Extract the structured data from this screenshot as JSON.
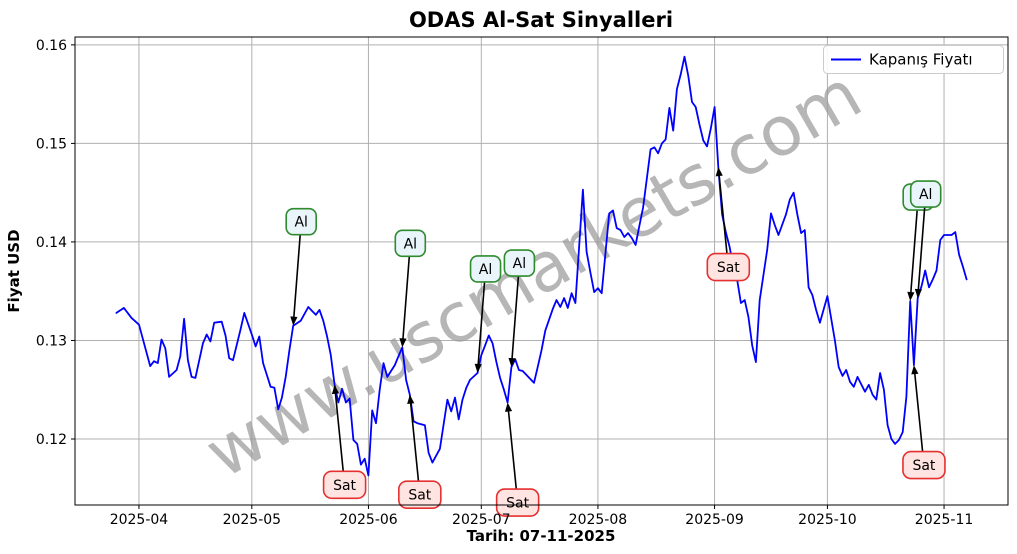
{
  "title": "ODAS Al-Sat Sinyalleri",
  "watermark": "www.uscmarkets.com",
  "axes": {
    "x_label": "Tarih: 07-11-2025",
    "y_label": "Fiyat USD"
  },
  "legend": {
    "label": "Kapanış Fiyatı"
  },
  "colors": {
    "line": "#0000ff",
    "grid": "#b0b0b0",
    "spine": "#000000",
    "buy_box_fill": "#eaf4fb",
    "buy_box_border": "#2e8b2e",
    "sell_box_fill": "#ffe4e1",
    "sell_box_border": "#e53030",
    "arrow": "#000000",
    "watermark": "#9b9b9b"
  },
  "chart_data": {
    "type": "line",
    "title": "ODAS Al-Sat Sinyalleri",
    "xlabel": "Tarih: 07-11-2025",
    "ylabel": "Fiyat USD",
    "grid": true,
    "legend_position": "upper right",
    "xlim": [
      "2025-03-15",
      "2025-11-18"
    ],
    "ylim": [
      0.1133,
      0.1608
    ],
    "x_ticks": [
      {
        "date": "2025-04-01",
        "label": "2025-04"
      },
      {
        "date": "2025-05-01",
        "label": "2025-05"
      },
      {
        "date": "2025-06-01",
        "label": "2025-06"
      },
      {
        "date": "2025-07-01",
        "label": "2025-07"
      },
      {
        "date": "2025-08-01",
        "label": "2025-08"
      },
      {
        "date": "2025-09-01",
        "label": "2025-09"
      },
      {
        "date": "2025-10-01",
        "label": "2025-10"
      },
      {
        "date": "2025-11-01",
        "label": "2025-11"
      }
    ],
    "y_ticks": [
      0.12,
      0.13,
      0.14,
      0.15,
      0.16
    ],
    "series": [
      {
        "name": "Kapanış Fiyatı",
        "color": "#0000ff",
        "points": [
          [
            "2025-03-26",
            0.1328
          ],
          [
            "2025-03-28",
            0.1333
          ],
          [
            "2025-03-30",
            0.1323
          ],
          [
            "2025-04-01",
            0.1316
          ],
          [
            "2025-04-04",
            0.1274
          ],
          [
            "2025-04-05",
            0.1279
          ],
          [
            "2025-04-06",
            0.1277
          ],
          [
            "2025-04-07",
            0.1301
          ],
          [
            "2025-04-08",
            0.1292
          ],
          [
            "2025-04-09",
            0.1263
          ],
          [
            "2025-04-11",
            0.127
          ],
          [
            "2025-04-12",
            0.1284
          ],
          [
            "2025-04-13",
            0.1322
          ],
          [
            "2025-04-14",
            0.128
          ],
          [
            "2025-04-15",
            0.1263
          ],
          [
            "2025-04-16",
            0.1262
          ],
          [
            "2025-04-18",
            0.1297
          ],
          [
            "2025-04-19",
            0.1306
          ],
          [
            "2025-04-20",
            0.1299
          ],
          [
            "2025-04-21",
            0.1318
          ],
          [
            "2025-04-23",
            0.1319
          ],
          [
            "2025-04-24",
            0.1305
          ],
          [
            "2025-04-25",
            0.1282
          ],
          [
            "2025-04-26",
            0.128
          ],
          [
            "2025-04-28",
            0.1311
          ],
          [
            "2025-04-29",
            0.1328
          ],
          [
            "2025-05-01",
            0.1306
          ],
          [
            "2025-05-02",
            0.1294
          ],
          [
            "2025-05-03",
            0.1304
          ],
          [
            "2025-05-04",
            0.1277
          ],
          [
            "2025-05-06",
            0.1253
          ],
          [
            "2025-05-07",
            0.1252
          ],
          [
            "2025-05-08",
            0.123
          ],
          [
            "2025-05-09",
            0.1242
          ],
          [
            "2025-05-10",
            0.1263
          ],
          [
            "2025-05-11",
            0.129
          ],
          [
            "2025-05-12",
            0.1315
          ],
          [
            "2025-05-14",
            0.132
          ],
          [
            "2025-05-16",
            0.1334
          ],
          [
            "2025-05-17",
            0.133
          ],
          [
            "2025-05-18",
            0.1326
          ],
          [
            "2025-05-19",
            0.1331
          ],
          [
            "2025-05-20",
            0.132
          ],
          [
            "2025-05-21",
            0.1304
          ],
          [
            "2025-05-22",
            0.1285
          ],
          [
            "2025-05-23",
            0.1255
          ],
          [
            "2025-05-24",
            0.1237
          ],
          [
            "2025-05-25",
            0.1251
          ],
          [
            "2025-05-26",
            0.1237
          ],
          [
            "2025-05-27",
            0.1241
          ],
          [
            "2025-05-28",
            0.1199
          ],
          [
            "2025-05-29",
            0.1195
          ],
          [
            "2025-05-30",
            0.1174
          ],
          [
            "2025-05-31",
            0.118
          ],
          [
            "2025-06-01",
            0.1163
          ],
          [
            "2025-06-02",
            0.1229
          ],
          [
            "2025-06-03",
            0.1216
          ],
          [
            "2025-06-04",
            0.125
          ],
          [
            "2025-06-05",
            0.1277
          ],
          [
            "2025-06-06",
            0.1263
          ],
          [
            "2025-06-08",
            0.1275
          ],
          [
            "2025-06-09",
            0.1284
          ],
          [
            "2025-06-10",
            0.1293
          ],
          [
            "2025-06-11",
            0.126
          ],
          [
            "2025-06-12",
            0.1245
          ],
          [
            "2025-06-13",
            0.1218
          ],
          [
            "2025-06-14",
            0.1216
          ],
          [
            "2025-06-16",
            0.1214
          ],
          [
            "2025-06-17",
            0.1186
          ],
          [
            "2025-06-18",
            0.1176
          ],
          [
            "2025-06-20",
            0.119
          ],
          [
            "2025-06-22",
            0.124
          ],
          [
            "2025-06-23",
            0.1228
          ],
          [
            "2025-06-24",
            0.1242
          ],
          [
            "2025-06-25",
            0.122
          ],
          [
            "2025-06-26",
            0.124
          ],
          [
            "2025-06-27",
            0.1252
          ],
          [
            "2025-06-28",
            0.126
          ],
          [
            "2025-06-30",
            0.1267
          ],
          [
            "2025-07-01",
            0.1285
          ],
          [
            "2025-07-02",
            0.1295
          ],
          [
            "2025-07-03",
            0.1305
          ],
          [
            "2025-07-04",
            0.1297
          ],
          [
            "2025-07-05",
            0.1278
          ],
          [
            "2025-07-06",
            0.1262
          ],
          [
            "2025-07-07",
            0.125
          ],
          [
            "2025-07-08",
            0.1237
          ],
          [
            "2025-07-09",
            0.1273
          ],
          [
            "2025-07-10",
            0.1281
          ],
          [
            "2025-07-11",
            0.127
          ],
          [
            "2025-07-12",
            0.1269
          ],
          [
            "2025-07-14",
            0.1261
          ],
          [
            "2025-07-15",
            0.1257
          ],
          [
            "2025-07-16",
            0.1273
          ],
          [
            "2025-07-17",
            0.129
          ],
          [
            "2025-07-18",
            0.131
          ],
          [
            "2025-07-20",
            0.1332
          ],
          [
            "2025-07-21",
            0.1341
          ],
          [
            "2025-07-22",
            0.1334
          ],
          [
            "2025-07-23",
            0.1343
          ],
          [
            "2025-07-24",
            0.1333
          ],
          [
            "2025-07-25",
            0.1348
          ],
          [
            "2025-07-26",
            0.1338
          ],
          [
            "2025-07-28",
            0.1453
          ],
          [
            "2025-07-29",
            0.139
          ],
          [
            "2025-07-30",
            0.1369
          ],
          [
            "2025-07-31",
            0.1349
          ],
          [
            "2025-08-01",
            0.1353
          ],
          [
            "2025-08-02",
            0.1348
          ],
          [
            "2025-08-04",
            0.1429
          ],
          [
            "2025-08-05",
            0.1432
          ],
          [
            "2025-08-06",
            0.1414
          ],
          [
            "2025-08-07",
            0.1412
          ],
          [
            "2025-08-08",
            0.1405
          ],
          [
            "2025-08-09",
            0.1409
          ],
          [
            "2025-08-10",
            0.1404
          ],
          [
            "2025-08-11",
            0.1397
          ],
          [
            "2025-08-12",
            0.1416
          ],
          [
            "2025-08-13",
            0.1435
          ],
          [
            "2025-08-14",
            0.1464
          ],
          [
            "2025-08-15",
            0.1494
          ],
          [
            "2025-08-16",
            0.1496
          ],
          [
            "2025-08-17",
            0.149
          ],
          [
            "2025-08-18",
            0.15
          ],
          [
            "2025-08-19",
            0.1504
          ],
          [
            "2025-08-20",
            0.1536
          ],
          [
            "2025-08-21",
            0.1513
          ],
          [
            "2025-08-22",
            0.1555
          ],
          [
            "2025-08-23",
            0.157
          ],
          [
            "2025-08-24",
            0.1588
          ],
          [
            "2025-08-25",
            0.1569
          ],
          [
            "2025-08-26",
            0.1542
          ],
          [
            "2025-08-27",
            0.1537
          ],
          [
            "2025-08-28",
            0.1519
          ],
          [
            "2025-08-29",
            0.1503
          ],
          [
            "2025-08-30",
            0.1497
          ],
          [
            "2025-08-31",
            0.1515
          ],
          [
            "2025-09-01",
            0.1537
          ],
          [
            "2025-09-02",
            0.1476
          ],
          [
            "2025-09-03",
            0.1428
          ],
          [
            "2025-09-04",
            0.141
          ],
          [
            "2025-09-05",
            0.1395
          ],
          [
            "2025-09-06",
            0.1375
          ],
          [
            "2025-09-07",
            0.1362
          ],
          [
            "2025-09-08",
            0.1338
          ],
          [
            "2025-09-09",
            0.1341
          ],
          [
            "2025-09-10",
            0.1324
          ],
          [
            "2025-09-11",
            0.1295
          ],
          [
            "2025-09-12",
            0.1278
          ],
          [
            "2025-09-13",
            0.1341
          ],
          [
            "2025-09-15",
            0.1392
          ],
          [
            "2025-09-16",
            0.1429
          ],
          [
            "2025-09-17",
            0.1417
          ],
          [
            "2025-09-18",
            0.1407
          ],
          [
            "2025-09-20",
            0.1428
          ],
          [
            "2025-09-21",
            0.1443
          ],
          [
            "2025-09-22",
            0.145
          ],
          [
            "2025-09-23",
            0.1428
          ],
          [
            "2025-09-24",
            0.1409
          ],
          [
            "2025-09-25",
            0.1412
          ],
          [
            "2025-09-26",
            0.1354
          ],
          [
            "2025-09-27",
            0.1346
          ],
          [
            "2025-09-28",
            0.1331
          ],
          [
            "2025-09-29",
            0.1318
          ],
          [
            "2025-10-01",
            0.1345
          ],
          [
            "2025-10-03",
            0.13
          ],
          [
            "2025-10-04",
            0.1273
          ],
          [
            "2025-10-05",
            0.1264
          ],
          [
            "2025-10-06",
            0.127
          ],
          [
            "2025-10-07",
            0.1258
          ],
          [
            "2025-10-08",
            0.1253
          ],
          [
            "2025-10-09",
            0.1263
          ],
          [
            "2025-10-11",
            0.1248
          ],
          [
            "2025-10-12",
            0.1255
          ],
          [
            "2025-10-13",
            0.1245
          ],
          [
            "2025-10-14",
            0.124
          ],
          [
            "2025-10-15",
            0.1267
          ],
          [
            "2025-10-16",
            0.125
          ],
          [
            "2025-10-17",
            0.1214
          ],
          [
            "2025-10-18",
            0.12
          ],
          [
            "2025-10-19",
            0.1195
          ],
          [
            "2025-10-20",
            0.1199
          ],
          [
            "2025-10-21",
            0.1207
          ],
          [
            "2025-10-22",
            0.1243
          ],
          [
            "2025-10-23",
            0.134
          ],
          [
            "2025-10-24",
            0.1275
          ],
          [
            "2025-10-25",
            0.1343
          ],
          [
            "2025-10-26",
            0.1355
          ],
          [
            "2025-10-27",
            0.1371
          ],
          [
            "2025-10-28",
            0.1354
          ],
          [
            "2025-10-29",
            0.1362
          ],
          [
            "2025-10-30",
            0.1371
          ],
          [
            "2025-10-31",
            0.1402
          ],
          [
            "2025-11-01",
            0.1407
          ],
          [
            "2025-11-03",
            0.1407
          ],
          [
            "2025-11-04",
            0.141
          ],
          [
            "2025-11-05",
            0.1387
          ],
          [
            "2025-11-06",
            0.1375
          ],
          [
            "2025-11-07",
            0.1362
          ]
        ]
      }
    ],
    "signals": {
      "buy": {
        "label": "Al",
        "points": [
          [
            "2025-05-12",
            0.1315
          ],
          [
            "2025-06-10",
            0.1293
          ],
          [
            "2025-06-30",
            0.1267
          ],
          [
            "2025-07-09",
            0.1273
          ],
          [
            "2025-10-23",
            0.134
          ],
          [
            "2025-10-25",
            0.1343
          ]
        ]
      },
      "sell": {
        "label": "Sat",
        "points": [
          [
            "2025-05-23",
            0.1255
          ],
          [
            "2025-06-12",
            0.1245
          ],
          [
            "2025-07-08",
            0.1237
          ],
          [
            "2025-09-02",
            0.1476
          ],
          [
            "2025-10-24",
            0.1275
          ]
        ]
      }
    }
  }
}
